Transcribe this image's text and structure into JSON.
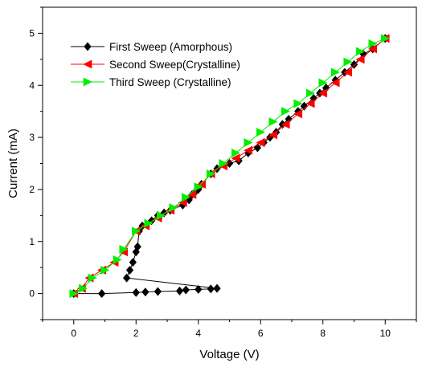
{
  "chart_data": {
    "type": "scatter",
    "title": "",
    "xlabel": "Voltage (V)",
    "ylabel": "Current (mA)",
    "xlim": [
      -1,
      11
    ],
    "ylim": [
      -0.5,
      5.5
    ],
    "x_ticks": [
      0,
      2,
      4,
      6,
      8,
      10
    ],
    "y_ticks": [
      0,
      1,
      2,
      3,
      4,
      5
    ],
    "x_tick_labels": [
      "0",
      "2",
      "4",
      "6",
      "8",
      "10"
    ],
    "y_tick_labels": [
      "0",
      "1",
      "2",
      "3",
      "4",
      "5"
    ],
    "grid": false,
    "legend_position": "top-left",
    "series": [
      {
        "name": "First Sweep (Amorphous)",
        "color": "#000000",
        "marker": "diamond",
        "points": [
          [
            0.0,
            0.0
          ],
          [
            0.9,
            0.0
          ],
          [
            2.0,
            0.02
          ],
          [
            2.3,
            0.03
          ],
          [
            2.7,
            0.04
          ],
          [
            3.4,
            0.05
          ],
          [
            3.6,
            0.07
          ],
          [
            4.0,
            0.08
          ],
          [
            4.4,
            0.09
          ],
          [
            4.6,
            0.1
          ],
          [
            1.7,
            0.3
          ],
          [
            1.8,
            0.45
          ],
          [
            1.9,
            0.6
          ],
          [
            2.0,
            0.8
          ],
          [
            2.05,
            0.9
          ],
          [
            2.1,
            1.2
          ],
          [
            2.2,
            1.3
          ],
          [
            2.5,
            1.4
          ],
          [
            2.7,
            1.5
          ],
          [
            2.9,
            1.55
          ],
          [
            3.1,
            1.6
          ],
          [
            3.5,
            1.7
          ],
          [
            3.7,
            1.8
          ],
          [
            3.8,
            1.9
          ],
          [
            3.9,
            1.95
          ],
          [
            4.0,
            2.0
          ],
          [
            4.1,
            2.1
          ],
          [
            4.4,
            2.3
          ],
          [
            4.6,
            2.4
          ],
          [
            5.0,
            2.5
          ],
          [
            5.3,
            2.55
          ],
          [
            5.6,
            2.7
          ],
          [
            5.9,
            2.8
          ],
          [
            6.1,
            2.9
          ],
          [
            6.3,
            3.0
          ],
          [
            6.5,
            3.1
          ],
          [
            6.7,
            3.25
          ],
          [
            6.9,
            3.35
          ],
          [
            7.2,
            3.5
          ],
          [
            7.4,
            3.6
          ],
          [
            7.7,
            3.75
          ],
          [
            7.9,
            3.85
          ],
          [
            8.1,
            3.95
          ],
          [
            8.4,
            4.1
          ],
          [
            8.7,
            4.25
          ],
          [
            9.0,
            4.4
          ],
          [
            9.3,
            4.6
          ],
          [
            9.6,
            4.7
          ],
          [
            10.0,
            4.9
          ]
        ]
      },
      {
        "name": "Second Sweep(Crystalline)",
        "color": "#ff0000",
        "marker": "triangle-left",
        "points": [
          [
            0.0,
            0.0
          ],
          [
            0.25,
            0.1
          ],
          [
            0.5,
            0.3
          ],
          [
            0.9,
            0.45
          ],
          [
            1.3,
            0.6
          ],
          [
            1.6,
            0.8
          ],
          [
            2.0,
            1.2
          ],
          [
            2.3,
            1.3
          ],
          [
            2.7,
            1.45
          ],
          [
            3.1,
            1.6
          ],
          [
            3.5,
            1.75
          ],
          [
            3.8,
            1.9
          ],
          [
            4.1,
            2.1
          ],
          [
            4.4,
            2.3
          ],
          [
            4.8,
            2.45
          ],
          [
            5.2,
            2.6
          ],
          [
            5.6,
            2.75
          ],
          [
            6.0,
            2.9
          ],
          [
            6.4,
            3.05
          ],
          [
            6.8,
            3.25
          ],
          [
            7.2,
            3.45
          ],
          [
            7.6,
            3.65
          ],
          [
            8.0,
            3.85
          ],
          [
            8.4,
            4.05
          ],
          [
            8.8,
            4.25
          ],
          [
            9.2,
            4.5
          ],
          [
            9.6,
            4.7
          ],
          [
            10.0,
            4.9
          ]
        ]
      },
      {
        "name": "Third Sweep (Crystalline)",
        "color": "#00ee00",
        "marker": "triangle-right",
        "points": [
          [
            0.0,
            0.0
          ],
          [
            0.3,
            0.1
          ],
          [
            0.6,
            0.3
          ],
          [
            1.0,
            0.45
          ],
          [
            1.4,
            0.65
          ],
          [
            1.6,
            0.85
          ],
          [
            2.0,
            1.2
          ],
          [
            2.4,
            1.35
          ],
          [
            2.8,
            1.5
          ],
          [
            3.2,
            1.65
          ],
          [
            3.6,
            1.85
          ],
          [
            4.0,
            2.05
          ],
          [
            4.4,
            2.3
          ],
          [
            4.8,
            2.5
          ],
          [
            5.2,
            2.7
          ],
          [
            5.6,
            2.9
          ],
          [
            6.0,
            3.1
          ],
          [
            6.4,
            3.3
          ],
          [
            6.8,
            3.5
          ],
          [
            7.2,
            3.65
          ],
          [
            7.6,
            3.85
          ],
          [
            8.0,
            4.05
          ],
          [
            8.4,
            4.25
          ],
          [
            8.8,
            4.45
          ],
          [
            9.2,
            4.65
          ],
          [
            9.6,
            4.8
          ],
          [
            10.0,
            4.9
          ]
        ]
      }
    ]
  }
}
